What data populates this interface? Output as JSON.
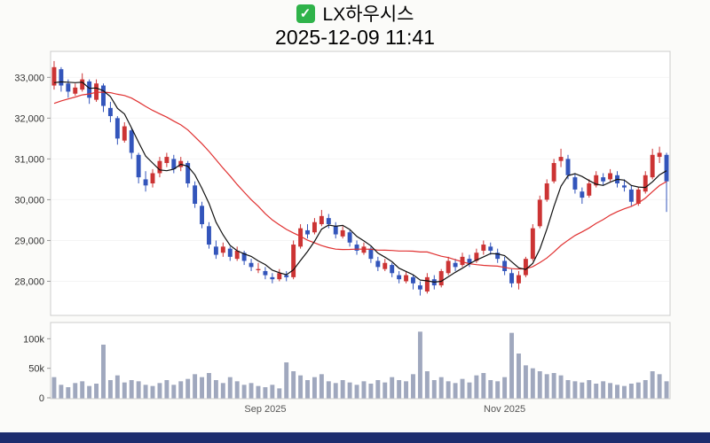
{
  "header": {
    "checkbox_glyph": "✓",
    "title": "LX하우시스",
    "datetime": "2025-12-09 11:41"
  },
  "colors": {
    "up": "#cc3434",
    "down": "#3355bb",
    "ma_fast": "#111111",
    "ma_slow": "#e03131",
    "volume_bar": "#a0a8be",
    "panel_fill": "#ffffff",
    "panel_border": "#cccccc",
    "grid": "#f4f4f4",
    "tick_text": "#333333",
    "axis_label_text": "#555555",
    "footer": "#1d2d6e",
    "background": "#fbfbf9"
  },
  "price_axis": {
    "ticks": [
      "33,000",
      "32,000",
      "31,000",
      "30,000",
      "29,000",
      "28,000"
    ],
    "values": [
      33000,
      32000,
      31000,
      30000,
      29000,
      28000
    ]
  },
  "volume_axis": {
    "ticks": [
      "100k",
      "50k",
      "0"
    ],
    "values": [
      100000,
      50000,
      0
    ]
  },
  "chart_data": {
    "type": "candlestick",
    "title": "LX하우시스",
    "timestamp": "2025-12-09 11:41",
    "price_ylim": [
      27250,
      33550
    ],
    "volume_ylim": [
      0,
      120000
    ],
    "x_labels": [
      {
        "text": "Sep 2025",
        "index": 30
      },
      {
        "text": "Nov 2025",
        "index": 64
      }
    ],
    "moving_averages": [
      {
        "period": 5,
        "color_key": "ma_fast"
      },
      {
        "period": 20,
        "color_key": "ma_slow"
      }
    ],
    "ma_prehistory": [
      31600,
      31700,
      31800,
      31900,
      32000,
      32100,
      32200,
      32300,
      32300,
      32400,
      32400,
      32500,
      32500,
      32600,
      32600,
      32700,
      32700,
      32800,
      32900
    ],
    "columns": [
      "open",
      "high",
      "low",
      "close",
      "volume"
    ],
    "candles": [
      [
        32800,
        33400,
        32700,
        33250,
        35000
      ],
      [
        33200,
        33250,
        32650,
        32800,
        22000
      ],
      [
        32850,
        32950,
        32500,
        32650,
        18000
      ],
      [
        32600,
        32850,
        32550,
        32750,
        25000
      ],
      [
        32700,
        33100,
        32650,
        32950,
        28000
      ],
      [
        32900,
        32950,
        32350,
        32500,
        20000
      ],
      [
        32450,
        32950,
        32400,
        32850,
        24000
      ],
      [
        32800,
        32850,
        32150,
        32300,
        90000
      ],
      [
        32250,
        32400,
        31900,
        32050,
        30000
      ],
      [
        32000,
        32050,
        31350,
        31500,
        38000
      ],
      [
        31450,
        31900,
        31400,
        31800,
        26000
      ],
      [
        31700,
        31750,
        31000,
        31150,
        30000
      ],
      [
        31100,
        31150,
        30400,
        30550,
        28000
      ],
      [
        30500,
        30700,
        30200,
        30350,
        22000
      ],
      [
        30400,
        30750,
        30300,
        30650,
        20000
      ],
      [
        30650,
        31050,
        30550,
        30950,
        25000
      ],
      [
        30900,
        31150,
        30800,
        31050,
        30000
      ],
      [
        31000,
        31100,
        30650,
        30750,
        22000
      ],
      [
        30800,
        31050,
        30700,
        30950,
        28000
      ],
      [
        30900,
        30950,
        30300,
        30400,
        32000
      ],
      [
        30350,
        30450,
        29800,
        29900,
        40000
      ],
      [
        29850,
        29950,
        29300,
        29400,
        35000
      ],
      [
        29350,
        29450,
        28800,
        28900,
        42000
      ],
      [
        28850,
        29000,
        28550,
        28650,
        30000
      ],
      [
        28700,
        28950,
        28600,
        28850,
        25000
      ],
      [
        28800,
        28850,
        28500,
        28600,
        35000
      ],
      [
        28550,
        28850,
        28500,
        28750,
        28000
      ],
      [
        28700,
        28750,
        28400,
        28500,
        22000
      ],
      [
        28450,
        28550,
        28250,
        28350,
        25000
      ],
      [
        28300,
        28450,
        28200,
        28300,
        20000
      ],
      [
        28250,
        28350,
        28050,
        28150,
        18000
      ],
      [
        28100,
        28200,
        27950,
        28050,
        22000
      ],
      [
        28050,
        28300,
        28000,
        28200,
        16000
      ],
      [
        28150,
        28250,
        28000,
        28100,
        60000
      ],
      [
        28100,
        29000,
        28050,
        28900,
        45000
      ],
      [
        28850,
        29400,
        28800,
        29300,
        38000
      ],
      [
        29250,
        29400,
        29050,
        29150,
        30000
      ],
      [
        29200,
        29550,
        29150,
        29450,
        35000
      ],
      [
        29400,
        29750,
        29350,
        29600,
        40000
      ],
      [
        29550,
        29650,
        29300,
        29400,
        28000
      ],
      [
        29350,
        29450,
        29050,
        29150,
        25000
      ],
      [
        29100,
        29350,
        29050,
        29250,
        30000
      ],
      [
        29200,
        29250,
        28850,
        28950,
        26000
      ],
      [
        28900,
        29000,
        28650,
        28750,
        22000
      ],
      [
        28700,
        28950,
        28650,
        28850,
        28000
      ],
      [
        28800,
        28850,
        28450,
        28550,
        24000
      ],
      [
        28500,
        28600,
        28250,
        28350,
        30000
      ],
      [
        28300,
        28550,
        28250,
        28450,
        26000
      ],
      [
        28400,
        28450,
        28100,
        28200,
        35000
      ],
      [
        28150,
        28250,
        27950,
        28050,
        30000
      ],
      [
        28000,
        28250,
        27950,
        28150,
        28000
      ],
      [
        28100,
        28150,
        27800,
        27950,
        40000
      ],
      [
        27900,
        28000,
        27650,
        27800,
        112000
      ],
      [
        27750,
        28200,
        27700,
        28100,
        45000
      ],
      [
        28050,
        28150,
        27800,
        27900,
        30000
      ],
      [
        27900,
        28300,
        27850,
        28250,
        35000
      ],
      [
        28200,
        28600,
        28150,
        28500,
        28000
      ],
      [
        28450,
        28550,
        28250,
        28350,
        25000
      ],
      [
        28400,
        28700,
        28350,
        28600,
        32000
      ],
      [
        28550,
        28650,
        28350,
        28450,
        26000
      ],
      [
        28500,
        28800,
        28450,
        28700,
        38000
      ],
      [
        28750,
        29000,
        28650,
        28900,
        42000
      ],
      [
        28850,
        28950,
        28650,
        28750,
        30000
      ],
      [
        28700,
        28800,
        28450,
        28550,
        28000
      ],
      [
        28500,
        28600,
        28150,
        28250,
        35000
      ],
      [
        28200,
        28300,
        27850,
        27950,
        110000
      ],
      [
        27950,
        28250,
        27800,
        28150,
        75000
      ],
      [
        28150,
        28600,
        28100,
        28550,
        55000
      ],
      [
        28550,
        29400,
        28500,
        29300,
        50000
      ],
      [
        29350,
        30100,
        29300,
        30000,
        45000
      ],
      [
        30000,
        30500,
        29950,
        30400,
        40000
      ],
      [
        30450,
        31000,
        30400,
        30900,
        42000
      ],
      [
        30950,
        31250,
        30800,
        31050,
        38000
      ],
      [
        31000,
        31100,
        30500,
        30600,
        30000
      ],
      [
        30550,
        30650,
        30150,
        30250,
        28000
      ],
      [
        30200,
        30300,
        29900,
        30050,
        26000
      ],
      [
        30100,
        30500,
        30050,
        30400,
        30000
      ],
      [
        30350,
        30700,
        30300,
        30600,
        24000
      ],
      [
        30550,
        30650,
        30350,
        30450,
        28000
      ],
      [
        30500,
        30750,
        30450,
        30650,
        25000
      ],
      [
        30600,
        30700,
        30300,
        30400,
        22000
      ],
      [
        30350,
        30500,
        30200,
        30300,
        20000
      ],
      [
        30250,
        30350,
        29850,
        29950,
        24000
      ],
      [
        29900,
        30300,
        29850,
        30250,
        26000
      ],
      [
        30200,
        30700,
        30150,
        30600,
        30000
      ],
      [
        30550,
        31250,
        30500,
        31100,
        45000
      ],
      [
        31050,
        31300,
        30900,
        31150,
        40000
      ],
      [
        31100,
        31150,
        29700,
        30450,
        28000
      ]
    ]
  }
}
